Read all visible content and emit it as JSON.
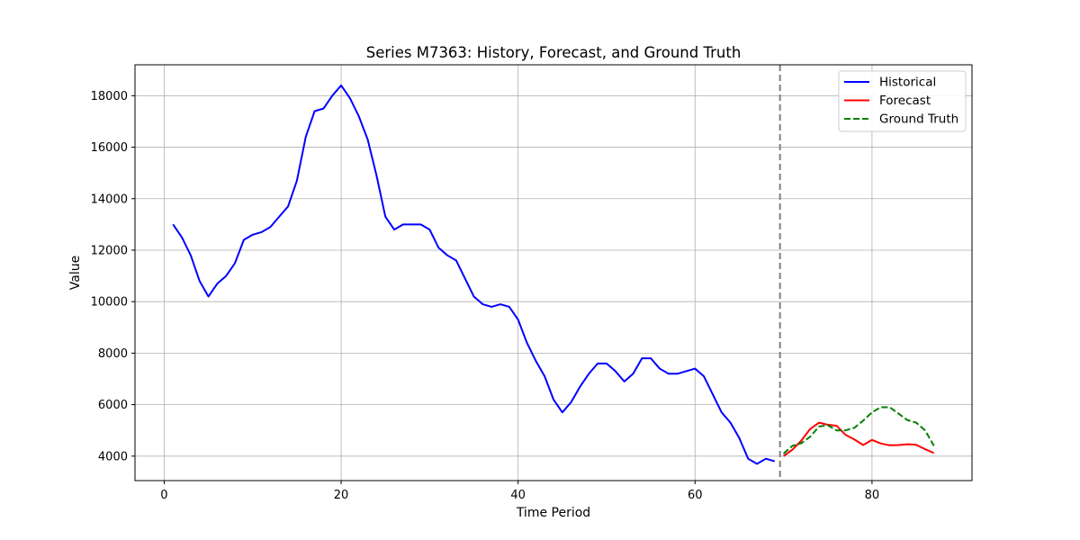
{
  "chart_data": {
    "type": "line",
    "title": "Series M7363: History, Forecast, and Ground Truth",
    "xlabel": "Time Period",
    "ylabel": "Value",
    "xlim": [
      -3.3,
      91.3
    ],
    "ylim": [
      3050,
      19200
    ],
    "xticks": [
      0,
      20,
      40,
      60,
      80
    ],
    "yticks": [
      4000,
      6000,
      8000,
      10000,
      12000,
      14000,
      16000,
      18000
    ],
    "grid": true,
    "legend_position": "top-right",
    "forecast_start": 69.6,
    "series": [
      {
        "name": "Historical",
        "color": "#0000ff",
        "style": "solid",
        "x": [
          1,
          2,
          3,
          4,
          5,
          6,
          7,
          8,
          9,
          10,
          11,
          12,
          13,
          14,
          15,
          16,
          17,
          18,
          19,
          20,
          21,
          22,
          23,
          24,
          25,
          26,
          27,
          28,
          29,
          30,
          31,
          32,
          33,
          34,
          35,
          36,
          37,
          38,
          39,
          40,
          41,
          42,
          43,
          44,
          45,
          46,
          47,
          48,
          49,
          50,
          51,
          52,
          53,
          54,
          55,
          56,
          57,
          58,
          59,
          60,
          61,
          62,
          63,
          64,
          65,
          66,
          67,
          68,
          69
        ],
        "values": [
          13000,
          12500,
          11800,
          10800,
          10200,
          10700,
          11000,
          11500,
          12400,
          12600,
          12700,
          12900,
          13300,
          13700,
          14700,
          16400,
          17400,
          17500,
          18000,
          18400,
          17900,
          17200,
          16300,
          14900,
          13300,
          12800,
          13000,
          13000,
          13000,
          12800,
          12100,
          11800,
          11600,
          10900,
          10200,
          9900,
          9800,
          9900,
          9800,
          9300,
          8400,
          7700,
          7100,
          6200,
          5700,
          6100,
          6700,
          7200,
          7600,
          7600,
          7300,
          6900,
          7200,
          7800,
          7800,
          7400,
          7200,
          7200,
          7300,
          7400,
          7100,
          6400,
          5700,
          5300,
          4700,
          3900,
          3700,
          3900,
          3800
        ]
      },
      {
        "name": "Forecast",
        "color": "#ff0000",
        "style": "solid",
        "x": [
          70,
          71,
          72,
          73,
          74,
          75,
          76,
          77,
          78,
          79,
          80,
          81,
          82,
          83,
          84,
          85,
          86,
          87
        ],
        "values": [
          4000,
          4250,
          4600,
          5050,
          5300,
          5220,
          5180,
          4830,
          4650,
          4430,
          4630,
          4490,
          4420,
          4430,
          4460,
          4440,
          4270,
          4120
        ]
      },
      {
        "name": "Ground Truth",
        "color": "#008000",
        "style": "dashed",
        "x": [
          70,
          71,
          72,
          73,
          74,
          75,
          76,
          77,
          78,
          79,
          80,
          81,
          82,
          83,
          84,
          85,
          86,
          87
        ],
        "values": [
          4100,
          4400,
          4500,
          4750,
          5150,
          5200,
          5000,
          5000,
          5100,
          5380,
          5700,
          5900,
          5900,
          5650,
          5400,
          5300,
          5000,
          4400
        ]
      }
    ]
  }
}
